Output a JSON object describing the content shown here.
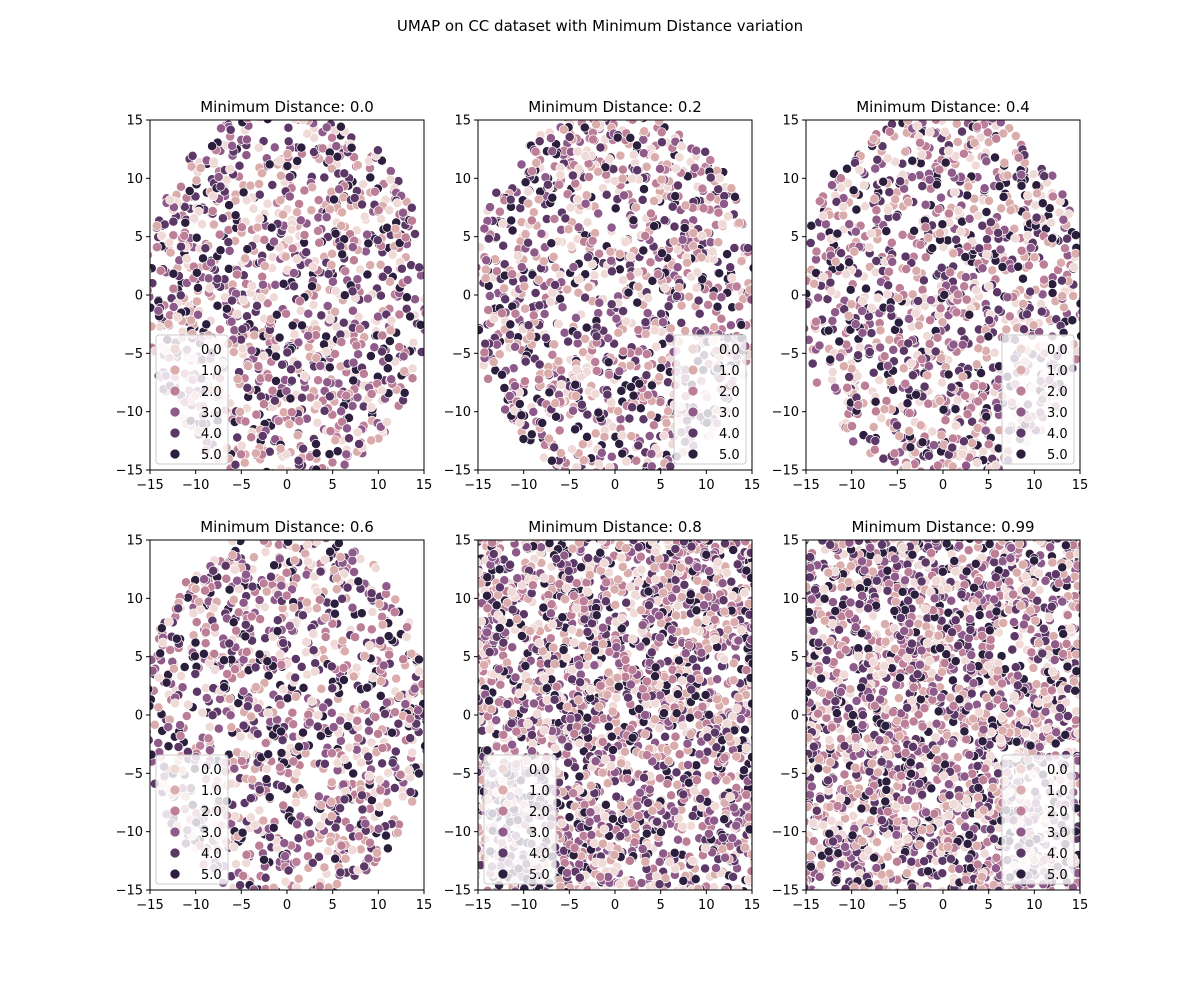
{
  "figure": {
    "suptitle": "UMAP on CC dataset with Minimum Distance variation",
    "palette": [
      "#f0dad8",
      "#dbacac",
      "#bd7e97",
      "#8e5a8a",
      "#5b3865",
      "#2c1e3d"
    ]
  },
  "chart_data": [
    {
      "type": "scatter",
      "title": "Minimum Distance: 0.0",
      "xlim": [
        -15,
        15
      ],
      "ylim": [
        -15,
        15
      ],
      "xticks": [
        -15,
        -10,
        -5,
        0,
        5,
        10,
        15
      ],
      "yticks": [
        -15,
        -10,
        -5,
        0,
        5,
        10,
        15
      ],
      "shape": "disc",
      "legend": {
        "entries": [
          "0.0",
          "1.0",
          "2.0",
          "3.0",
          "4.0",
          "5.0"
        ],
        "loc": "lower left"
      },
      "grid": false
    },
    {
      "type": "scatter",
      "title": "Minimum Distance: 0.2",
      "xlim": [
        -15,
        15
      ],
      "ylim": [
        -15,
        15
      ],
      "xticks": [
        -15,
        -10,
        -5,
        0,
        5,
        10,
        15
      ],
      "yticks": [
        -15,
        -10,
        -5,
        0,
        5,
        10,
        15
      ],
      "shape": "disc",
      "legend": {
        "entries": [
          "0.0",
          "1.0",
          "2.0",
          "3.0",
          "4.0",
          "5.0"
        ],
        "loc": "lower right"
      },
      "grid": false
    },
    {
      "type": "scatter",
      "title": "Minimum Distance: 0.4",
      "xlim": [
        -15,
        15
      ],
      "ylim": [
        -15,
        15
      ],
      "xticks": [
        -15,
        -10,
        -5,
        0,
        5,
        10,
        15
      ],
      "yticks": [
        -15,
        -10,
        -5,
        0,
        5,
        10,
        15
      ],
      "shape": "disc",
      "legend": {
        "entries": [
          "0.0",
          "1.0",
          "2.0",
          "3.0",
          "4.0",
          "5.0"
        ],
        "loc": "lower right"
      },
      "grid": false
    },
    {
      "type": "scatter",
      "title": "Minimum Distance: 0.6",
      "xlim": [
        -15,
        15
      ],
      "ylim": [
        -15,
        15
      ],
      "xticks": [
        -15,
        -10,
        -5,
        0,
        5,
        10,
        15
      ],
      "yticks": [
        -15,
        -10,
        -5,
        0,
        5,
        10,
        15
      ],
      "shape": "disc",
      "legend": {
        "entries": [
          "0.0",
          "1.0",
          "2.0",
          "3.0",
          "4.0",
          "5.0"
        ],
        "loc": "lower left"
      },
      "grid": false
    },
    {
      "type": "scatter",
      "title": "Minimum Distance: 0.8",
      "xlim": [
        -15,
        15
      ],
      "ylim": [
        -15,
        15
      ],
      "xticks": [
        -15,
        -10,
        -5,
        0,
        5,
        10,
        15
      ],
      "yticks": [
        -15,
        -10,
        -5,
        0,
        5,
        10,
        15
      ],
      "shape": "filled",
      "legend": {
        "entries": [
          "0.0",
          "1.0",
          "2.0",
          "3.0",
          "4.0",
          "5.0"
        ],
        "loc": "lower left"
      },
      "grid": false
    },
    {
      "type": "scatter",
      "title": "Minimum Distance: 0.99",
      "xlim": [
        -15,
        15
      ],
      "ylim": [
        -15,
        15
      ],
      "xticks": [
        -15,
        -10,
        -5,
        0,
        5,
        10,
        15
      ],
      "yticks": [
        -15,
        -10,
        -5,
        0,
        5,
        10,
        15
      ],
      "shape": "filled",
      "legend": {
        "entries": [
          "0.0",
          "1.0",
          "2.0",
          "3.0",
          "4.0",
          "5.0"
        ],
        "loc": "lower right"
      },
      "grid": false
    }
  ]
}
